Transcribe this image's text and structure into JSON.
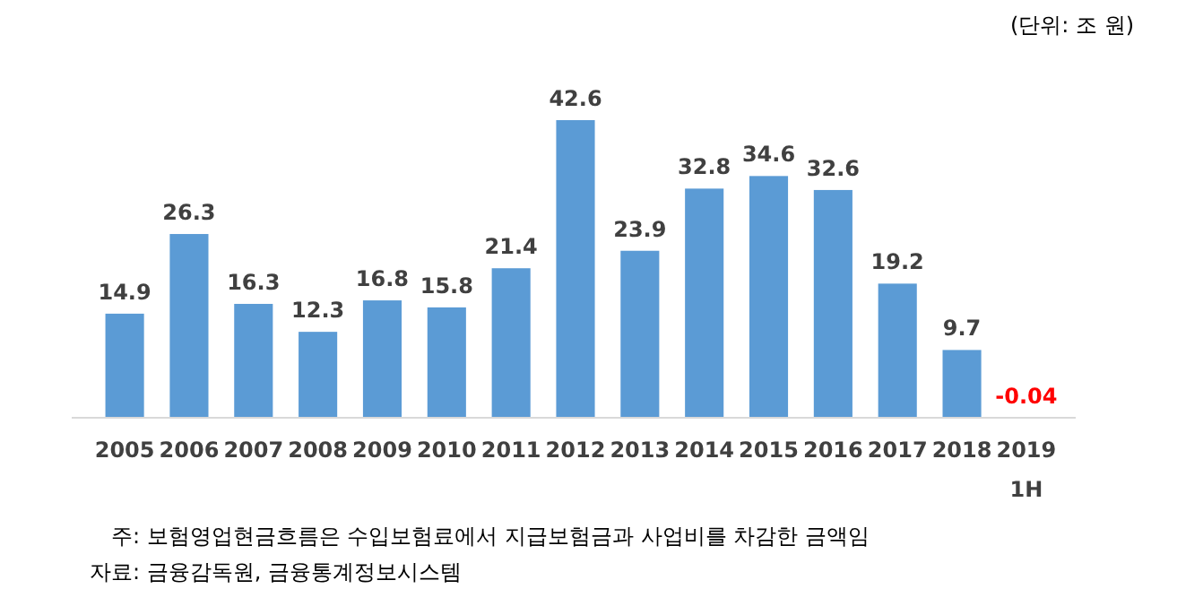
{
  "chart_data": {
    "type": "bar",
    "categories": [
      "2005",
      "2006",
      "2007",
      "2008",
      "2009",
      "2010",
      "2011",
      "2012",
      "2013",
      "2014",
      "2015",
      "2016",
      "2017",
      "2018",
      "2019 1H"
    ],
    "values": [
      14.9,
      26.3,
      16.3,
      12.3,
      16.8,
      15.8,
      21.4,
      42.6,
      23.9,
      32.8,
      34.6,
      32.6,
      19.2,
      9.7,
      -0.04
    ],
    "colors": [
      "#5b9bd5",
      "#5b9bd5",
      "#5b9bd5",
      "#5b9bd5",
      "#5b9bd5",
      "#5b9bd5",
      "#5b9bd5",
      "#5b9bd5",
      "#5b9bd5",
      "#5b9bd5",
      "#5b9bd5",
      "#5b9bd5",
      "#5b9bd5",
      "#5b9bd5",
      "#ff0000"
    ],
    "data_labels": true,
    "annotations": [
      "(단위: 조 원)",
      "주: 보험영업현금흐름은 수입보험료에서 지급보험금과 사업비를 차감한 금액임",
      "자료: 금융감독원, 금융통계정보시스템"
    ]
  }
}
